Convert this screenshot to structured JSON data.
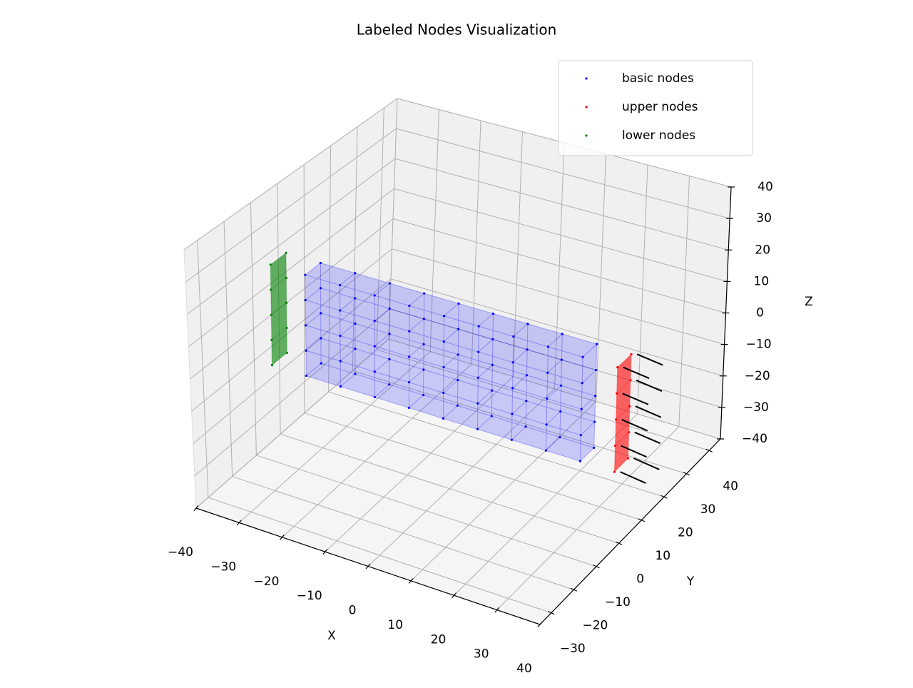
{
  "chart_data": {
    "type": "scatter3d",
    "title": "Labeled Nodes Visualization",
    "xlabel": "X",
    "ylabel": "Y",
    "zlabel": "Z",
    "xlim": [
      -40,
      40
    ],
    "ylim": [
      -35,
      45
    ],
    "zlim": [
      -40,
      40
    ],
    "xticks": [
      {
        "value": -40,
        "label": "−40"
      },
      {
        "value": -30,
        "label": "−30"
      },
      {
        "value": -20,
        "label": "−20"
      },
      {
        "value": -10,
        "label": "−10"
      },
      0,
      10,
      20,
      30,
      40
    ],
    "yticks": [
      {
        "value": -30,
        "label": "−30"
      },
      {
        "value": -20,
        "label": "−20"
      },
      {
        "value": -10,
        "label": "−10"
      },
      0,
      10,
      20,
      30,
      40
    ],
    "zticks": [
      {
        "value": -40,
        "label": "−40"
      },
      {
        "value": -30,
        "label": "−30"
      },
      {
        "value": -20,
        "label": "−20"
      },
      {
        "value": -10,
        "label": "−10"
      },
      0,
      10,
      20,
      30,
      40
    ],
    "grid": true,
    "legend": "upper right",
    "series": [
      {
        "name": "basic nodes",
        "color": "blue",
        "x": [
          -32,
          -32,
          -32,
          -32,
          -32,
          -32,
          -32,
          -32,
          -32,
          -32,
          -24,
          -24,
          -24,
          -24,
          -24,
          -24,
          -24,
          -24,
          -24,
          -24,
          -16,
          -16,
          -16,
          -16,
          -16,
          -16,
          -16,
          -16,
          -16,
          -16,
          -8,
          -8,
          -8,
          -8,
          -8,
          -8,
          -8,
          -8,
          -8,
          -8,
          0,
          0,
          0,
          0,
          0,
          0,
          0,
          0,
          0,
          0,
          8,
          8,
          8,
          8,
          8,
          8,
          8,
          8,
          8,
          8,
          16,
          16,
          16,
          16,
          16,
          16,
          16,
          16,
          16,
          16,
          24,
          24,
          24,
          24,
          24,
          24,
          24,
          24,
          24,
          24,
          32,
          32,
          32,
          32,
          32,
          32,
          32,
          32,
          32,
          32
        ],
        "y": [
          -3,
          -3,
          -3,
          -3,
          -3,
          3,
          3,
          3,
          3,
          3,
          -3,
          -3,
          -3,
          -3,
          -3,
          3,
          3,
          3,
          3,
          3,
          -3,
          -3,
          -3,
          -3,
          -3,
          3,
          3,
          3,
          3,
          3,
          -3,
          -3,
          -3,
          -3,
          -3,
          3,
          3,
          3,
          3,
          3,
          -3,
          -3,
          -3,
          -3,
          -3,
          3,
          3,
          3,
          3,
          3,
          -3,
          -3,
          -3,
          -3,
          -3,
          3,
          3,
          3,
          3,
          3,
          -3,
          -3,
          -3,
          -3,
          -3,
          3,
          3,
          3,
          3,
          3,
          -3,
          -3,
          -3,
          -3,
          -3,
          3,
          3,
          3,
          3,
          3,
          -3,
          -3,
          -3,
          -3,
          -3,
          3,
          3,
          3,
          3,
          3
        ],
        "z": [
          -16,
          -8,
          0,
          8,
          16,
          -16,
          -8,
          0,
          8,
          16,
          -16,
          -8,
          0,
          8,
          16,
          -16,
          -8,
          0,
          8,
          16,
          -16,
          -8,
          0,
          8,
          16,
          -16,
          -8,
          0,
          8,
          16,
          -16,
          -8,
          0,
          8,
          16,
          -16,
          -8,
          0,
          8,
          16,
          -16,
          -8,
          0,
          8,
          16,
          -16,
          -8,
          0,
          8,
          16,
          -16,
          -8,
          0,
          8,
          16,
          -16,
          -8,
          0,
          8,
          16,
          -16,
          -8,
          0,
          8,
          16,
          -16,
          -8,
          0,
          8,
          16,
          -16,
          -8,
          0,
          8,
          16,
          -16,
          -8,
          0,
          8,
          16,
          -16,
          -8,
          0,
          8,
          16,
          -16,
          -8,
          0,
          8,
          16
        ]
      },
      {
        "name": "upper nodes",
        "color": "red",
        "x": [
          40,
          40,
          40,
          40,
          40,
          40,
          40,
          40,
          40,
          40
        ],
        "y": [
          -3,
          -3,
          -3,
          -3,
          -3,
          3,
          3,
          3,
          3,
          3
        ],
        "z": [
          -16,
          -8,
          0,
          8,
          16,
          -16,
          -8,
          0,
          8,
          16
        ]
      },
      {
        "name": "lower nodes",
        "color": "green",
        "x": [
          -40,
          -40,
          -40,
          -40,
          -40,
          -40,
          -40,
          -40,
          -40,
          -40
        ],
        "y": [
          -3,
          -3,
          -3,
          -3,
          -3,
          3,
          3,
          3,
          3,
          3
        ],
        "z": [
          -16,
          -8,
          0,
          8,
          16,
          -16,
          -8,
          0,
          8,
          16
        ]
      }
    ],
    "quiver": {
      "color": "black",
      "u": 6,
      "v": 0,
      "w": -1
    }
  }
}
